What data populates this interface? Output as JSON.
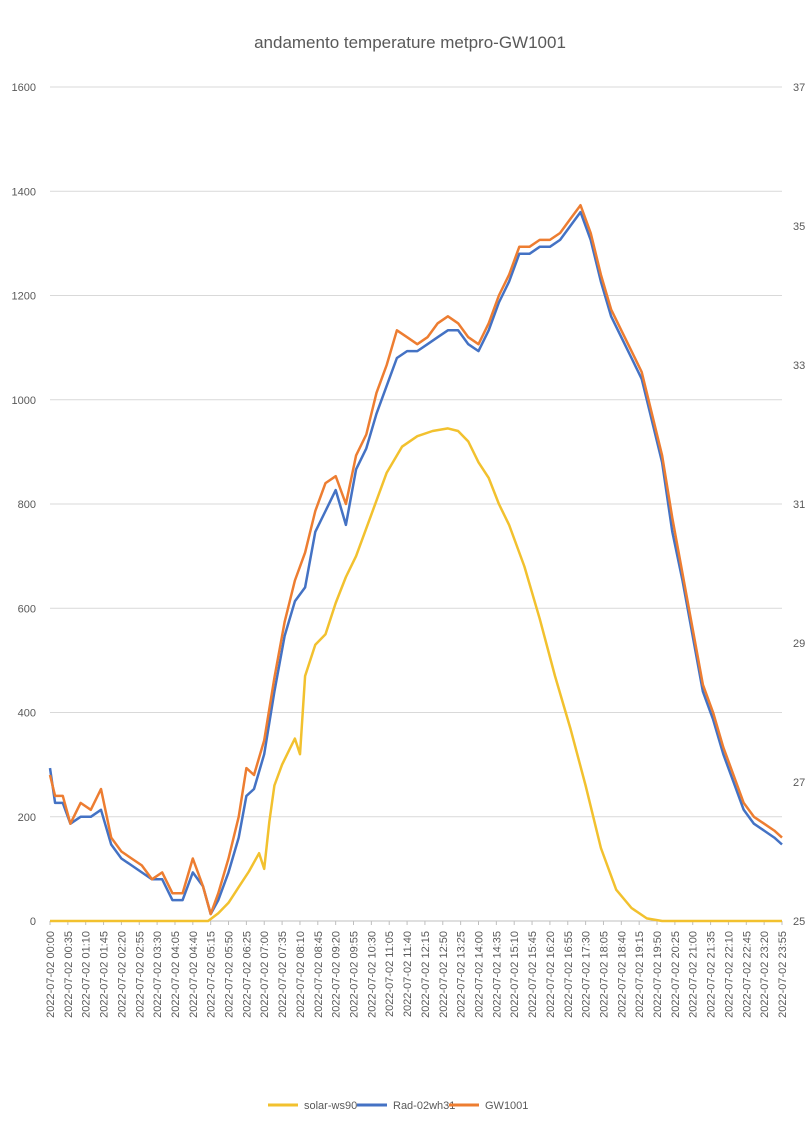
{
  "chart_data": {
    "type": "line",
    "title": "andamento temperature metpro-GW1001",
    "xlabel": "",
    "ylabel": "",
    "grid": true,
    "legend_position": "bottom",
    "y_left": {
      "range": [
        0,
        1600
      ],
      "ticks": [
        "0",
        "200",
        "400",
        "600",
        "800",
        "1000",
        "1200",
        "1400",
        "1600"
      ]
    },
    "y_right": {
      "range": [
        25,
        37
      ],
      "ticks": [
        "25",
        "27",
        "29",
        "31",
        "33",
        "35",
        "37"
      ]
    },
    "x_tick_labels": [
      "2022-07-02 00:00",
      "2022-07-02 00:35",
      "2022-07-02 01:10",
      "2022-07-02 01:45",
      "2022-07-02 02:20",
      "2022-07-02 02:55",
      "2022-07-02 03:30",
      "2022-07-02 04:05",
      "2022-07-02 04:40",
      "2022-07-02 05:15",
      "2022-07-02 05:50",
      "2022-07-02 06:25",
      "2022-07-02 07:00",
      "2022-07-02 07:35",
      "2022-07-02 08:10",
      "2022-07-02 08:45",
      "2022-07-02 09:20",
      "2022-07-02 09:55",
      "2022-07-02 10:30",
      "2022-07-02 11:05",
      "2022-07-02 11:40",
      "2022-07-02 12:15",
      "2022-07-02 12:50",
      "2022-07-02 13:25",
      "2022-07-02 14:00",
      "2022-07-02 14:35",
      "2022-07-02 15:10",
      "2022-07-02 15:45",
      "2022-07-02 16:20",
      "2022-07-02 16:55",
      "2022-07-02 17:30",
      "2022-07-02 18:05",
      "2022-07-02 18:40",
      "2022-07-02 19:15",
      "2022-07-02 19:50",
      "2022-07-02 20:25",
      "2022-07-02 21:00",
      "2022-07-02 21:35",
      "2022-07-02 22:10",
      "2022-07-02 22:45",
      "2022-07-02 23:20",
      "2022-07-02 23:55"
    ],
    "series": [
      {
        "name": "solar-ws90",
        "axis": "left",
        "color": "#f2c12e",
        "x": [
          "2022-07-02 00:00",
          "2022-07-02 05:10",
          "2022-07-02 05:30",
          "2022-07-02 05:50",
          "2022-07-02 06:10",
          "2022-07-02 06:30",
          "2022-07-02 06:50",
          "2022-07-02 07:00",
          "2022-07-02 07:10",
          "2022-07-02 07:20",
          "2022-07-02 07:35",
          "2022-07-02 07:50",
          "2022-07-02 08:00",
          "2022-07-02 08:10",
          "2022-07-02 08:20",
          "2022-07-02 08:40",
          "2022-07-02 09:00",
          "2022-07-02 09:20",
          "2022-07-02 09:40",
          "2022-07-02 10:00",
          "2022-07-02 10:30",
          "2022-07-02 11:00",
          "2022-07-02 11:30",
          "2022-07-02 12:00",
          "2022-07-02 12:30",
          "2022-07-02 13:00",
          "2022-07-02 13:20",
          "2022-07-02 13:40",
          "2022-07-02 14:00",
          "2022-07-02 14:20",
          "2022-07-02 14:40",
          "2022-07-02 15:00",
          "2022-07-02 15:30",
          "2022-07-02 16:00",
          "2022-07-02 16:30",
          "2022-07-02 17:00",
          "2022-07-02 17:30",
          "2022-07-02 18:00",
          "2022-07-02 18:30",
          "2022-07-02 19:00",
          "2022-07-02 19:30",
          "2022-07-02 20:00",
          "2022-07-02 20:15",
          "2022-07-02 20:30",
          "2022-07-02 23:55"
        ],
        "values": [
          0,
          0,
          15,
          35,
          65,
          95,
          130,
          100,
          190,
          260,
          300,
          330,
          350,
          320,
          470,
          530,
          550,
          610,
          660,
          700,
          780,
          860,
          910,
          930,
          940,
          945,
          940,
          920,
          880,
          850,
          800,
          760,
          680,
          580,
          470,
          370,
          260,
          140,
          60,
          25,
          5,
          0,
          0,
          0,
          0
        ]
      },
      {
        "name": "Rad-02wh31",
        "axis": "right",
        "color": "#4472c4",
        "x": [
          "2022-07-02 00:00",
          "2022-07-02 00:10",
          "2022-07-02 00:25",
          "2022-07-02 00:40",
          "2022-07-02 01:00",
          "2022-07-02 01:20",
          "2022-07-02 01:40",
          "2022-07-02 02:00",
          "2022-07-02 02:20",
          "2022-07-02 02:40",
          "2022-07-02 03:00",
          "2022-07-02 03:20",
          "2022-07-02 03:40",
          "2022-07-02 04:00",
          "2022-07-02 04:20",
          "2022-07-02 04:40",
          "2022-07-02 05:00",
          "2022-07-02 05:15",
          "2022-07-02 05:30",
          "2022-07-02 05:50",
          "2022-07-02 06:10",
          "2022-07-02 06:25",
          "2022-07-02 06:40",
          "2022-07-02 07:00",
          "2022-07-02 07:20",
          "2022-07-02 07:40",
          "2022-07-02 08:00",
          "2022-07-02 08:20",
          "2022-07-02 08:40",
          "2022-07-02 09:00",
          "2022-07-02 09:20",
          "2022-07-02 09:40",
          "2022-07-02 10:00",
          "2022-07-02 10:20",
          "2022-07-02 10:40",
          "2022-07-02 11:00",
          "2022-07-02 11:20",
          "2022-07-02 11:40",
          "2022-07-02 12:00",
          "2022-07-02 12:20",
          "2022-07-02 12:40",
          "2022-07-02 13:00",
          "2022-07-02 13:20",
          "2022-07-02 13:40",
          "2022-07-02 14:00",
          "2022-07-02 14:20",
          "2022-07-02 14:40",
          "2022-07-02 15:00",
          "2022-07-02 15:20",
          "2022-07-02 15:40",
          "2022-07-02 16:00",
          "2022-07-02 16:20",
          "2022-07-02 16:40",
          "2022-07-02 17:00",
          "2022-07-02 17:20",
          "2022-07-02 17:40",
          "2022-07-02 18:00",
          "2022-07-02 18:20",
          "2022-07-02 18:40",
          "2022-07-02 19:00",
          "2022-07-02 19:20",
          "2022-07-02 19:40",
          "2022-07-02 20:00",
          "2022-07-02 20:20",
          "2022-07-02 20:40",
          "2022-07-02 21:00",
          "2022-07-02 21:20",
          "2022-07-02 21:40",
          "2022-07-02 22:00",
          "2022-07-02 22:20",
          "2022-07-02 22:40",
          "2022-07-02 23:00",
          "2022-07-02 23:20",
          "2022-07-02 23:40",
          "2022-07-02 23:55"
        ],
        "values": [
          27.2,
          26.7,
          26.7,
          26.4,
          26.5,
          26.5,
          26.6,
          26.1,
          25.9,
          25.8,
          25.7,
          25.6,
          25.6,
          25.3,
          25.3,
          25.7,
          25.5,
          25.1,
          25.3,
          25.7,
          26.2,
          26.8,
          26.9,
          27.4,
          28.3,
          29.1,
          29.6,
          29.8,
          30.6,
          30.9,
          31.2,
          30.7,
          31.5,
          31.8,
          32.3,
          32.7,
          33.1,
          33.2,
          33.2,
          33.3,
          33.4,
          33.5,
          33.5,
          33.3,
          33.2,
          33.5,
          33.9,
          34.2,
          34.6,
          34.6,
          34.7,
          34.7,
          34.8,
          35.0,
          35.2,
          34.8,
          34.2,
          33.7,
          33.4,
          33.1,
          32.8,
          32.2,
          31.6,
          30.6,
          29.9,
          29.1,
          28.3,
          27.9,
          27.4,
          27.0,
          26.6,
          26.4,
          26.3,
          26.2,
          26.1
        ]
      },
      {
        "name": "GW1001",
        "axis": "right",
        "color": "#ed7d31",
        "x": [
          "2022-07-02 00:00",
          "2022-07-02 00:10",
          "2022-07-02 00:25",
          "2022-07-02 00:40",
          "2022-07-02 01:00",
          "2022-07-02 01:20",
          "2022-07-02 01:40",
          "2022-07-02 02:00",
          "2022-07-02 02:20",
          "2022-07-02 02:40",
          "2022-07-02 03:00",
          "2022-07-02 03:20",
          "2022-07-02 03:40",
          "2022-07-02 04:00",
          "2022-07-02 04:20",
          "2022-07-02 04:40",
          "2022-07-02 05:00",
          "2022-07-02 05:15",
          "2022-07-02 05:30",
          "2022-07-02 05:50",
          "2022-07-02 06:10",
          "2022-07-02 06:25",
          "2022-07-02 06:40",
          "2022-07-02 07:00",
          "2022-07-02 07:20",
          "2022-07-02 07:40",
          "2022-07-02 08:00",
          "2022-07-02 08:20",
          "2022-07-02 08:40",
          "2022-07-02 09:00",
          "2022-07-02 09:20",
          "2022-07-02 09:40",
          "2022-07-02 10:00",
          "2022-07-02 10:20",
          "2022-07-02 10:40",
          "2022-07-02 11:00",
          "2022-07-02 11:20",
          "2022-07-02 11:40",
          "2022-07-02 12:00",
          "2022-07-02 12:20",
          "2022-07-02 12:40",
          "2022-07-02 13:00",
          "2022-07-02 13:20",
          "2022-07-02 13:40",
          "2022-07-02 14:00",
          "2022-07-02 14:20",
          "2022-07-02 14:40",
          "2022-07-02 15:00",
          "2022-07-02 15:20",
          "2022-07-02 15:40",
          "2022-07-02 16:00",
          "2022-07-02 16:20",
          "2022-07-02 16:40",
          "2022-07-02 17:00",
          "2022-07-02 17:20",
          "2022-07-02 17:40",
          "2022-07-02 18:00",
          "2022-07-02 18:20",
          "2022-07-02 18:40",
          "2022-07-02 19:00",
          "2022-07-02 19:20",
          "2022-07-02 19:40",
          "2022-07-02 20:00",
          "2022-07-02 20:20",
          "2022-07-02 20:40",
          "2022-07-02 21:00",
          "2022-07-02 21:20",
          "2022-07-02 21:40",
          "2022-07-02 22:00",
          "2022-07-02 22:20",
          "2022-07-02 22:40",
          "2022-07-02 23:00",
          "2022-07-02 23:20",
          "2022-07-02 23:40",
          "2022-07-02 23:55"
        ],
        "values": [
          27.1,
          26.8,
          26.8,
          26.4,
          26.7,
          26.6,
          26.9,
          26.2,
          26.0,
          25.9,
          25.8,
          25.6,
          25.7,
          25.4,
          25.4,
          25.9,
          25.5,
          25.1,
          25.4,
          25.9,
          26.5,
          27.2,
          27.1,
          27.6,
          28.5,
          29.3,
          29.9,
          30.3,
          30.9,
          31.3,
          31.4,
          31.0,
          31.7,
          32.0,
          32.6,
          33.0,
          33.5,
          33.4,
          33.3,
          33.4,
          33.6,
          33.7,
          33.6,
          33.4,
          33.3,
          33.6,
          34.0,
          34.3,
          34.7,
          34.7,
          34.8,
          34.8,
          34.9,
          35.1,
          35.3,
          34.9,
          34.3,
          33.8,
          33.5,
          33.2,
          32.9,
          32.3,
          31.7,
          30.8,
          30.0,
          29.2,
          28.4,
          28.0,
          27.5,
          27.1,
          26.7,
          26.5,
          26.4,
          26.3,
          26.2
        ]
      }
    ]
  },
  "legend": {
    "items": [
      {
        "label": "solar-ws90",
        "color": "#f2c12e"
      },
      {
        "label": "Rad-02wh31",
        "color": "#4472c4"
      },
      {
        "label": "GW1001",
        "color": "#ed7d31"
      }
    ]
  }
}
